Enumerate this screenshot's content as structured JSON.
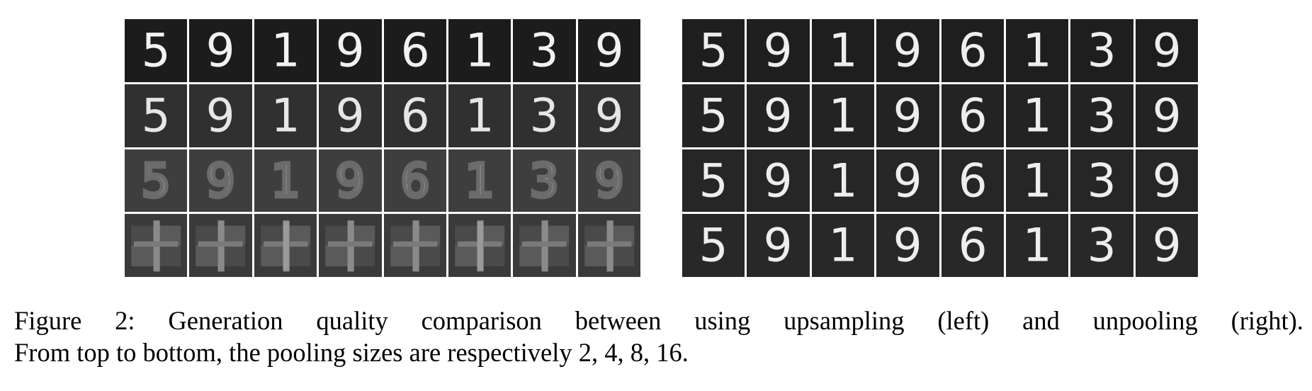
{
  "figure": {
    "digits": [
      "5",
      "9",
      "1",
      "9",
      "6",
      "1",
      "3",
      "9"
    ],
    "pooling_sizes": [
      2,
      4,
      8,
      16
    ],
    "panels": [
      {
        "method": "upsampling",
        "row_tones": [
          "#1c1c1c",
          "#303030",
          "#3e3e3e",
          "#3a3a3a"
        ]
      },
      {
        "method": "unpooling",
        "row_tones": [
          "#1e1e1e",
          "#232323",
          "#262626",
          "#282828"
        ]
      }
    ],
    "caption": {
      "line1_words": [
        "Figure",
        "2:",
        "Generation",
        "quality",
        "comparison",
        "between",
        "using",
        "upsampling",
        "(left)",
        "and",
        "unpooling",
        "(right)."
      ],
      "line2": "From top to bottom, the pooling sizes are respectively 2, 4, 8, 16."
    }
  }
}
